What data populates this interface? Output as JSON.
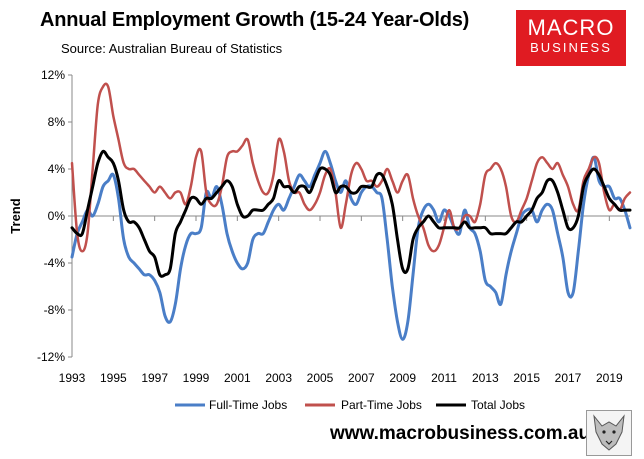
{
  "header": {
    "title": "Annual Employment Growth (15-24 Year-Olds)",
    "subtitle": "Source: Australian Bureau of Statistics"
  },
  "logo": {
    "line1": "MACRO",
    "line2": "BUSINESS"
  },
  "footer": {
    "website": "www.macrobusiness.com.au"
  },
  "colors": {
    "full_time": "#4a7ec7",
    "part_time": "#c0504d",
    "total": "#000000",
    "logo_bg": "#e01b22"
  },
  "chart_data": {
    "type": "line",
    "title": "Annual Employment Growth (15-24 Year-Olds)",
    "xlabel": "",
    "ylabel": "Trend",
    "xlim": [
      1993,
      2020
    ],
    "ylim": [
      -12,
      12
    ],
    "x_ticks": [
      1993,
      1995,
      1997,
      1999,
      2001,
      2003,
      2005,
      2007,
      2009,
      2011,
      2013,
      2015,
      2017,
      2019
    ],
    "y_ticks": [
      -12,
      -8,
      -4,
      0,
      4,
      8,
      12
    ],
    "y_tick_labels": [
      "-12%",
      "-8%",
      "-4%",
      "0%",
      "4%",
      "8%",
      "12%"
    ],
    "legend_position": "bottom-center",
    "series": [
      {
        "name": "Full-Time Jobs",
        "x": [
          1993,
          1993.25,
          1993.5,
          1993.75,
          1994,
          1994.25,
          1994.5,
          1994.75,
          1995,
          1995.25,
          1995.5,
          1995.75,
          1996,
          1996.25,
          1996.5,
          1996.75,
          1997,
          1997.25,
          1997.5,
          1997.75,
          1998,
          1998.25,
          1998.5,
          1998.75,
          1999,
          1999.25,
          1999.5,
          1999.75,
          2000,
          2000.25,
          2000.5,
          2000.75,
          2001,
          2001.25,
          2001.5,
          2001.75,
          2002,
          2002.25,
          2002.5,
          2002.75,
          2003,
          2003.25,
          2003.5,
          2003.75,
          2004,
          2004.25,
          2004.5,
          2004.75,
          2005,
          2005.25,
          2005.5,
          2005.75,
          2006,
          2006.25,
          2006.5,
          2006.75,
          2007,
          2007.25,
          2007.5,
          2007.75,
          2008,
          2008.25,
          2008.5,
          2008.75,
          2009,
          2009.25,
          2009.5,
          2009.75,
          2010,
          2010.25,
          2010.5,
          2010.75,
          2011,
          2011.25,
          2011.5,
          2011.75,
          2012,
          2012.25,
          2012.5,
          2012.75,
          2013,
          2013.25,
          2013.5,
          2013.75,
          2014,
          2014.25,
          2014.5,
          2014.75,
          2015,
          2015.25,
          2015.5,
          2015.75,
          2016,
          2016.25,
          2016.5,
          2016.75,
          2017,
          2017.25,
          2017.5,
          2017.75,
          2018,
          2018.25,
          2018.5,
          2018.75,
          2019,
          2019.25,
          2019.5,
          2019.75,
          2020
        ],
        "values": [
          -3.5,
          -1.5,
          -0.5,
          0.5,
          0.0,
          1.0,
          2.5,
          3.0,
          3.5,
          1.5,
          -2.0,
          -3.5,
          -4.0,
          -4.5,
          -5.0,
          -5.0,
          -5.5,
          -6.5,
          -8.5,
          -9.0,
          -7.5,
          -4.5,
          -2.5,
          -1.5,
          -1.5,
          -1.0,
          2.0,
          1.5,
          2.5,
          1.0,
          -1.5,
          -3.0,
          -4.0,
          -4.5,
          -4.0,
          -2.0,
          -1.5,
          -1.5,
          -0.5,
          0.5,
          1.0,
          0.5,
          1.5,
          2.5,
          3.5,
          3.0,
          2.5,
          3.5,
          4.5,
          5.5,
          4.5,
          3.0,
          2.0,
          3.0,
          1.5,
          1.0,
          2.0,
          2.5,
          2.5,
          2.0,
          1.5,
          -2.0,
          -6.0,
          -9.0,
          -10.5,
          -9.0,
          -5.0,
          -1.0,
          0.5,
          1.0,
          0.5,
          -0.5,
          0.5,
          0.0,
          -1.0,
          -1.5,
          0.5,
          -1.0,
          -1.5,
          -3.0,
          -5.5,
          -6.0,
          -6.5,
          -7.5,
          -5.0,
          -3.0,
          -1.5,
          0.0,
          0.5,
          0.5,
          -0.5,
          0.5,
          1.0,
          0.5,
          -1.5,
          -3.5,
          -6.5,
          -6.5,
          -3.0,
          1.0,
          3.5,
          5.0,
          3.0,
          2.5,
          2.5,
          1.5,
          1.5,
          0.5,
          -1.0
        ]
      },
      {
        "name": "Part-Time Jobs",
        "x": [
          1993,
          1993.25,
          1993.5,
          1993.75,
          1994,
          1994.25,
          1994.5,
          1994.75,
          1995,
          1995.25,
          1995.5,
          1995.75,
          1996,
          1996.25,
          1996.5,
          1996.75,
          1997,
          1997.25,
          1997.5,
          1997.75,
          1998,
          1998.25,
          1998.5,
          1998.75,
          1999,
          1999.25,
          1999.5,
          1999.75,
          2000,
          2000.25,
          2000.5,
          2000.75,
          2001,
          2001.25,
          2001.5,
          2001.75,
          2002,
          2002.25,
          2002.5,
          2002.75,
          2003,
          2003.25,
          2003.5,
          2003.75,
          2004,
          2004.25,
          2004.5,
          2004.75,
          2005,
          2005.25,
          2005.5,
          2005.75,
          2006,
          2006.25,
          2006.5,
          2006.75,
          2007,
          2007.25,
          2007.5,
          2007.75,
          2008,
          2008.25,
          2008.5,
          2008.75,
          2009,
          2009.25,
          2009.5,
          2009.75,
          2010,
          2010.25,
          2010.5,
          2010.75,
          2011,
          2011.25,
          2011.5,
          2011.75,
          2012,
          2012.25,
          2012.5,
          2012.75,
          2013,
          2013.25,
          2013.5,
          2013.75,
          2014,
          2014.25,
          2014.5,
          2014.75,
          2015,
          2015.25,
          2015.5,
          2015.75,
          2016,
          2016.25,
          2016.5,
          2016.75,
          2017,
          2017.25,
          2017.5,
          2017.75,
          2018,
          2018.25,
          2018.5,
          2018.75,
          2019,
          2019.25,
          2019.5,
          2019.75,
          2020
        ],
        "values": [
          4.5,
          -1.5,
          -3.0,
          -1.5,
          4.0,
          9.5,
          11.0,
          11.0,
          8.5,
          6.5,
          4.5,
          4.0,
          4.0,
          3.5,
          3.0,
          2.5,
          2.0,
          2.5,
          2.0,
          1.5,
          2.0,
          2.0,
          1.0,
          2.5,
          5.0,
          5.5,
          2.0,
          1.0,
          1.0,
          2.5,
          5.0,
          5.5,
          5.5,
          6.0,
          6.5,
          4.5,
          3.0,
          2.0,
          2.0,
          3.5,
          6.5,
          5.5,
          3.0,
          2.0,
          2.0,
          1.0,
          0.5,
          1.0,
          2.0,
          3.5,
          4.0,
          2.0,
          -1.0,
          1.0,
          3.5,
          4.5,
          4.0,
          3.0,
          3.0,
          2.5,
          3.0,
          4.0,
          3.0,
          2.0,
          3.0,
          3.5,
          1.5,
          0.0,
          -1.0,
          -2.5,
          -3.0,
          -2.5,
          -1.0,
          0.5,
          -1.0,
          -1.0,
          0.0,
          0.0,
          -0.5,
          1.0,
          3.5,
          4.0,
          4.5,
          4.0,
          2.5,
          0.0,
          -0.5,
          0.5,
          1.5,
          3.0,
          4.5,
          5.0,
          4.5,
          4.0,
          4.5,
          3.5,
          2.5,
          1.0,
          0.5,
          3.0,
          4.0,
          5.0,
          4.5,
          2.0,
          0.5,
          1.0,
          0.5,
          1.5,
          2.0
        ]
      },
      {
        "name": "Total Jobs",
        "x": [
          1993,
          1993.25,
          1993.5,
          1993.75,
          1994,
          1994.25,
          1994.5,
          1994.75,
          1995,
          1995.25,
          1995.5,
          1995.75,
          1996,
          1996.25,
          1996.5,
          1996.75,
          1997,
          1997.25,
          1997.5,
          1997.75,
          1998,
          1998.25,
          1998.5,
          1998.75,
          1999,
          1999.25,
          1999.5,
          1999.75,
          2000,
          2000.25,
          2000.5,
          2000.75,
          2001,
          2001.25,
          2001.5,
          2001.75,
          2002,
          2002.25,
          2002.5,
          2002.75,
          2003,
          2003.25,
          2003.5,
          2003.75,
          2004,
          2004.25,
          2004.5,
          2004.75,
          2005,
          2005.25,
          2005.5,
          2005.75,
          2006,
          2006.25,
          2006.5,
          2006.75,
          2007,
          2007.25,
          2007.5,
          2007.75,
          2008,
          2008.25,
          2008.5,
          2008.75,
          2009,
          2009.25,
          2009.5,
          2009.75,
          2010,
          2010.25,
          2010.5,
          2010.75,
          2011,
          2011.25,
          2011.5,
          2011.75,
          2012,
          2012.25,
          2012.5,
          2012.75,
          2013,
          2013.25,
          2013.5,
          2013.75,
          2014,
          2014.25,
          2014.5,
          2014.75,
          2015,
          2015.25,
          2015.5,
          2015.75,
          2016,
          2016.25,
          2016.5,
          2016.75,
          2017,
          2017.25,
          2017.5,
          2017.75,
          2018,
          2018.25,
          2018.5,
          2018.75,
          2019,
          2019.25,
          2019.5,
          2019.75,
          2020
        ],
        "values": [
          -1.0,
          -1.5,
          -1.5,
          0.5,
          2.5,
          4.5,
          5.5,
          5.0,
          4.5,
          3.0,
          0.5,
          -0.5,
          -0.5,
          -1.0,
          -2.0,
          -3.0,
          -3.5,
          -5.0,
          -5.0,
          -4.5,
          -1.5,
          -0.5,
          0.5,
          1.5,
          1.5,
          1.0,
          1.5,
          1.5,
          2.0,
          2.5,
          3.0,
          2.5,
          1.0,
          0.0,
          0.0,
          0.5,
          0.5,
          0.5,
          1.0,
          1.5,
          3.0,
          2.5,
          2.5,
          2.0,
          2.5,
          2.5,
          2.0,
          3.0,
          4.0,
          4.0,
          3.5,
          2.0,
          2.5,
          2.5,
          2.0,
          2.0,
          2.5,
          2.5,
          2.5,
          3.5,
          3.5,
          2.5,
          1.0,
          -2.0,
          -4.5,
          -4.5,
          -2.0,
          -1.0,
          -0.5,
          0.0,
          -0.5,
          -1.0,
          -1.0,
          -1.0,
          -1.0,
          -1.0,
          -0.5,
          -1.0,
          -1.0,
          -1.0,
          -1.0,
          -1.5,
          -1.5,
          -1.5,
          -1.5,
          -1.0,
          -0.5,
          -0.5,
          0.0,
          0.5,
          1.5,
          2.0,
          3.0,
          3.0,
          2.0,
          0.5,
          -1.0,
          -1.0,
          0.0,
          2.5,
          3.5,
          4.0,
          3.5,
          2.5,
          1.5,
          1.0,
          0.5,
          0.5,
          0.5
        ]
      }
    ]
  }
}
